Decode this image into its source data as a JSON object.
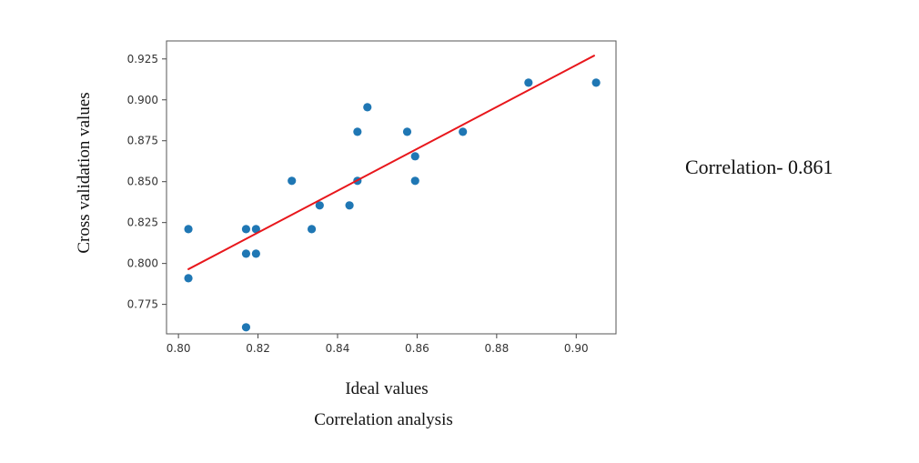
{
  "chart_data": {
    "type": "scatter",
    "xlabel": "Ideal values",
    "ylabel": "Cross validation values",
    "xlim": [
      0.797,
      0.91
    ],
    "ylim": [
      0.757,
      0.936
    ],
    "xticks": [
      0.8,
      0.82,
      0.84,
      0.86,
      0.88,
      0.9
    ],
    "xtick_labels": [
      "0.80",
      "0.82",
      "0.84",
      "0.86",
      "0.88",
      "0.90"
    ],
    "yticks": [
      0.775,
      0.8,
      0.825,
      0.85,
      0.875,
      0.9,
      0.925
    ],
    "ytick_labels": [
      "0.775",
      "0.800",
      "0.825",
      "0.850",
      "0.875",
      "0.900",
      "0.925"
    ],
    "grid": false,
    "points": [
      {
        "x": 0.8025,
        "y": 0.821
      },
      {
        "x": 0.8025,
        "y": 0.791
      },
      {
        "x": 0.817,
        "y": 0.821
      },
      {
        "x": 0.817,
        "y": 0.806
      },
      {
        "x": 0.817,
        "y": 0.761
      },
      {
        "x": 0.8195,
        "y": 0.821
      },
      {
        "x": 0.8195,
        "y": 0.806
      },
      {
        "x": 0.8285,
        "y": 0.8505
      },
      {
        "x": 0.8335,
        "y": 0.821
      },
      {
        "x": 0.8355,
        "y": 0.8355
      },
      {
        "x": 0.843,
        "y": 0.8355
      },
      {
        "x": 0.845,
        "y": 0.8505
      },
      {
        "x": 0.845,
        "y": 0.8805
      },
      {
        "x": 0.8475,
        "y": 0.8955
      },
      {
        "x": 0.8575,
        "y": 0.8805
      },
      {
        "x": 0.8595,
        "y": 0.8655
      },
      {
        "x": 0.8595,
        "y": 0.8505
      },
      {
        "x": 0.8715,
        "y": 0.8805
      },
      {
        "x": 0.888,
        "y": 0.9105
      },
      {
        "x": 0.905,
        "y": 0.9105
      }
    ],
    "fit_line": {
      "x": [
        0.8025,
        0.9045
      ],
      "y": [
        0.7965,
        0.927
      ]
    },
    "colors": {
      "points": "#1f77b4",
      "fit_line": "#e8171c",
      "frame": "#555555"
    }
  },
  "annotation": "Correlation- 0.861",
  "caption": "Correlation analysis"
}
